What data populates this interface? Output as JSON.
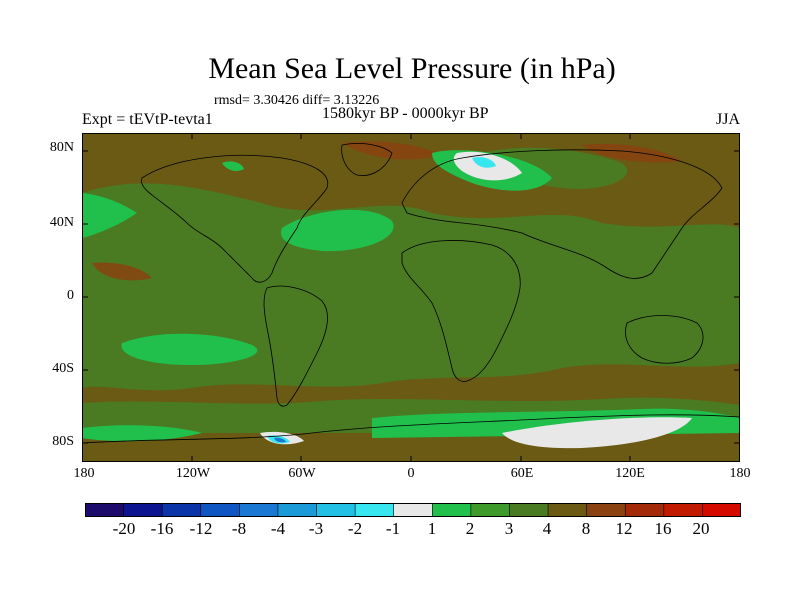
{
  "title": "Mean Sea Level Pressure (in hPa)",
  "stats": "rmsd= 3.30426 diff= 3.13226",
  "experiment": "Expt = tEVtP-tevta1",
  "period": "1580kyr BP - 0000kyr BP",
  "season": "JJA",
  "lat_labels": [
    "80N",
    "40N",
    "0",
    "40S",
    "80S"
  ],
  "lon_labels": [
    "180",
    "120W",
    "60W",
    "0",
    "60E",
    "120E",
    "180"
  ],
  "legend": {
    "labels": [
      "-20",
      "-16",
      "-12",
      "-8",
      "-4",
      "-3",
      "-2",
      "-1",
      "1",
      "2",
      "3",
      "4",
      "8",
      "12",
      "16",
      "20"
    ],
    "colors": [
      "#1d0b6b",
      "#0d148f",
      "#0a34a8",
      "#0f56c2",
      "#1a78d2",
      "#1a9ad6",
      "#23c0e6",
      "#38e6ef",
      "#e8e8e8",
      "#21c04d",
      "#3f9a2c",
      "#4a7a22",
      "#6a5a14",
      "#8a4210",
      "#a32a08",
      "#c01a00",
      "#d40a00"
    ]
  },
  "colors": {
    "background_field": "#6a5a14",
    "field_green": "#4a7a22",
    "field_light_green": "#21c04d",
    "field_white": "#e8e8e8",
    "field_cyan": "#38e6ef",
    "field_blue": "#1a78d2",
    "field_brown": "#8a4210"
  }
}
